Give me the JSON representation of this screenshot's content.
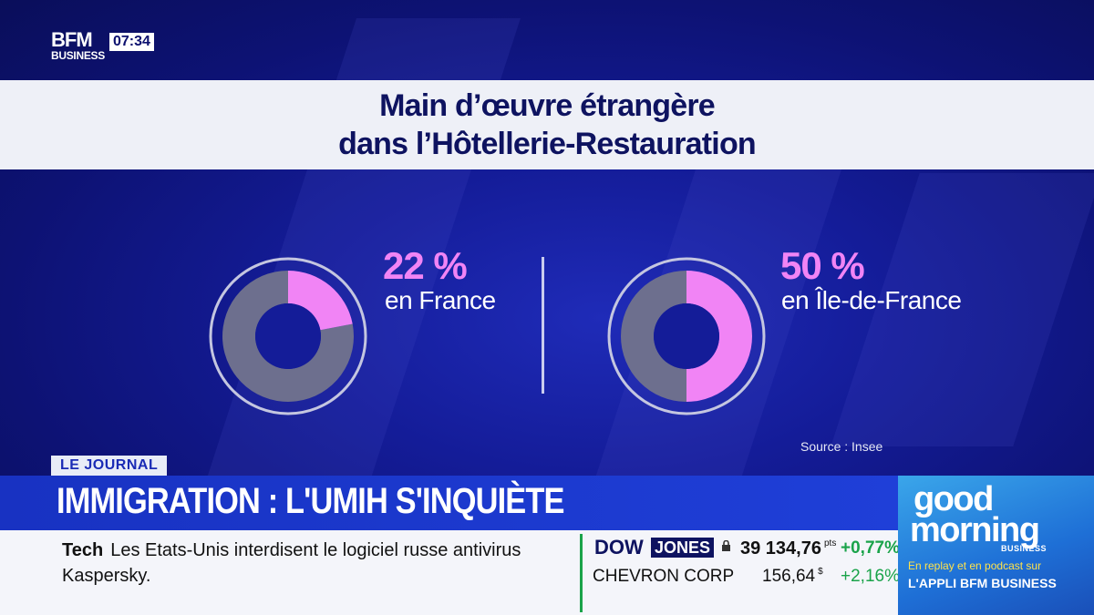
{
  "channel": {
    "logo_top": "BFM",
    "logo_bottom": "BUSINESS",
    "time": "07:34"
  },
  "chart_data": {
    "type": "pie",
    "title": "Main d’œuvre étrangère dans l’Hôtellerie-Restauration",
    "title_line1": "Main d’œuvre étrangère",
    "title_line2": "dans l’Hôtellerie-Restauration",
    "source": "Source : Insee",
    "highlight_color": "#f184f5",
    "rest_color": "#6d6f8e",
    "series": [
      {
        "value": 22,
        "label": "22 %",
        "region": "en France"
      },
      {
        "value": 50,
        "label": "50 %",
        "region": "en Île-de-France"
      }
    ]
  },
  "lower_third": {
    "tag": "LE JOURNAL",
    "headline": "IMMIGRATION : L'UMIH S'INQUIÈTE"
  },
  "ticker": {
    "category": "Tech",
    "news": "Les Etats-Unis interdisent le logiciel russe antivirus Kaspersky.",
    "index_name_a": "DOW",
    "index_name_b": "JONES",
    "index_value": "39 134,76",
    "index_unit": "pts",
    "index_change": "+0,77%",
    "stock_name": "CHEVRON CORP",
    "stock_value": "156,64",
    "stock_unit": "$",
    "stock_change": "+2,16%"
  },
  "promo": {
    "line_good": "good",
    "line_morning": "morning",
    "business": "BUSINESS",
    "replay": "En replay et en podcast sur",
    "app": "L'APPLI BFM BUSINESS"
  }
}
